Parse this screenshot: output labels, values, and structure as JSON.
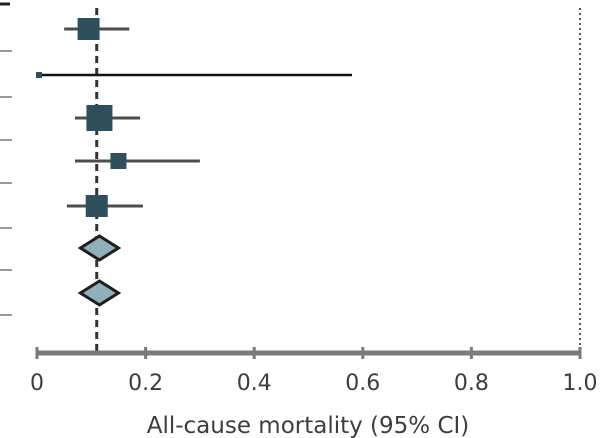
{
  "chart_data": {
    "type": "forest",
    "title": "",
    "xlabel": "All-cause mortality (95% CI)",
    "ylabel": "",
    "xlim": [
      0,
      1.0
    ],
    "x_ticks": [
      0,
      0.2,
      0.4,
      0.6,
      0.8,
      1.0
    ],
    "x_tick_labels": [
      "0",
      "0.2",
      "0.4",
      "0.6",
      "0.8",
      "1.0"
    ],
    "reference_lines": [
      {
        "kind": "pooled-estimate",
        "x": 0.11,
        "style": "dashed"
      },
      {
        "kind": "null-line",
        "x": 1.0,
        "style": "dotted"
      }
    ],
    "rows": [
      {
        "marker": "square",
        "estimate": 0.095,
        "lower": 0.05,
        "upper": 0.17,
        "size": "medium"
      },
      {
        "marker": "square",
        "estimate": 0.0,
        "lower": 0.0,
        "upper": 0.58,
        "size": "tiny"
      },
      {
        "marker": "square",
        "estimate": 0.115,
        "lower": 0.07,
        "upper": 0.19,
        "size": "large"
      },
      {
        "marker": "square",
        "estimate": 0.15,
        "lower": 0.07,
        "upper": 0.3,
        "size": "small"
      },
      {
        "marker": "square",
        "estimate": 0.11,
        "lower": 0.055,
        "upper": 0.195,
        "size": "medium"
      },
      {
        "marker": "diamond",
        "estimate": 0.115,
        "lower": 0.08,
        "upper": 0.15
      },
      {
        "marker": "diamond",
        "estimate": 0.115,
        "lower": 0.08,
        "upper": 0.15
      }
    ],
    "grid": false,
    "colors": {
      "square_fill": "#2f4f5c",
      "diamond_fill": "#8fb0bb",
      "diamond_stroke": "#1e1e1e",
      "ci_line": "#4d4d4d",
      "axis": "#7a7a7a",
      "left_tick": "#9a9a9a"
    }
  }
}
